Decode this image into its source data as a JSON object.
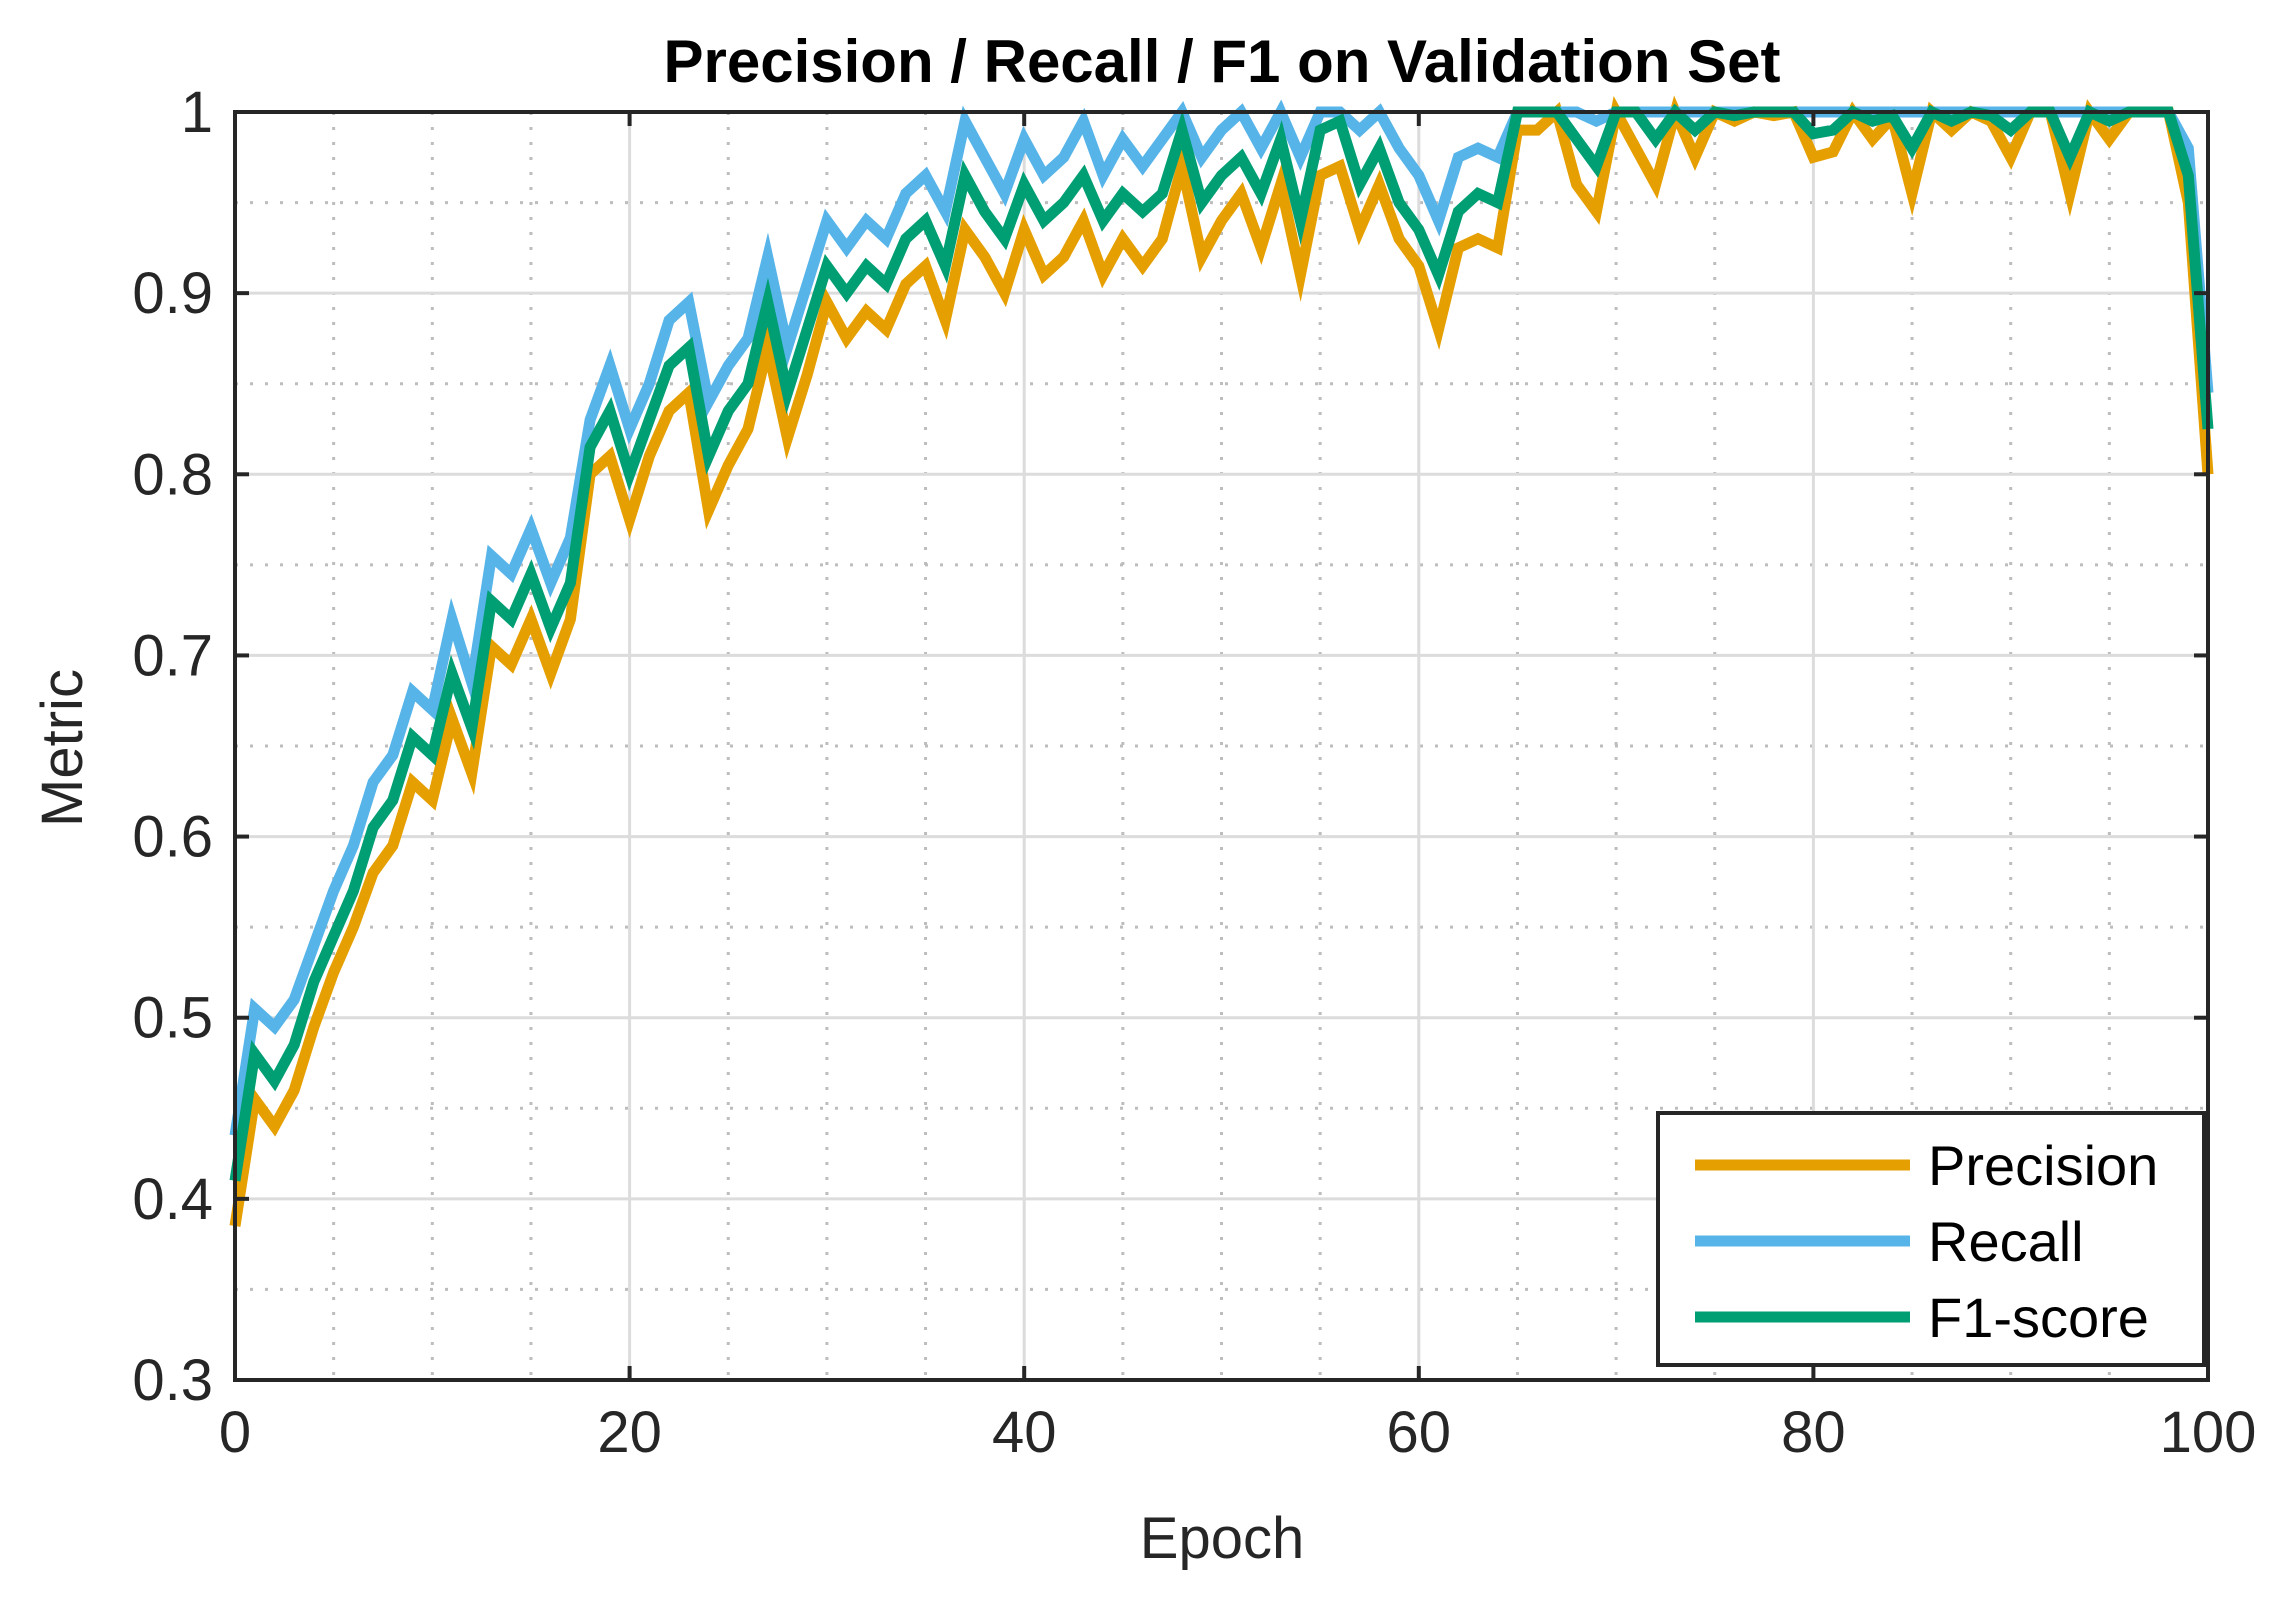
{
  "chart_data": {
    "type": "line",
    "title": "Precision / Recall / F1 on Validation Set",
    "xlabel": "Epoch",
    "ylabel": "Metric",
    "xlim": [
      0,
      100
    ],
    "ylim": [
      0.3,
      1
    ],
    "xticks": [
      0,
      20,
      40,
      60,
      80,
      100
    ],
    "xtick_labels": [
      "0",
      "20",
      "40",
      "60",
      "80",
      "100"
    ],
    "yticks": [
      0.3,
      0.4,
      0.5,
      0.6,
      0.7,
      0.8,
      0.9,
      1
    ],
    "ytick_labels": [
      "0.3",
      "0.4",
      "0.5",
      "0.6",
      "0.7",
      "0.8",
      "0.9",
      "1"
    ],
    "grid": "major and minor",
    "legend_position": "bottom-right",
    "x": [
      0,
      1,
      2,
      3,
      4,
      5,
      6,
      7,
      8,
      9,
      10,
      11,
      12,
      13,
      14,
      15,
      16,
      17,
      18,
      19,
      20,
      21,
      22,
      23,
      24,
      25,
      26,
      27,
      28,
      29,
      30,
      31,
      32,
      33,
      34,
      35,
      36,
      37,
      38,
      39,
      40,
      41,
      42,
      43,
      44,
      45,
      46,
      47,
      48,
      49,
      50,
      51,
      52,
      53,
      54,
      55,
      56,
      57,
      58,
      59,
      60,
      61,
      62,
      63,
      64,
      65,
      66,
      67,
      68,
      69,
      70,
      71,
      72,
      73,
      74,
      75,
      76,
      77,
      78,
      79,
      80,
      81,
      82,
      83,
      84,
      85,
      86,
      87,
      88,
      89,
      90,
      91,
      92,
      93,
      94,
      95,
      96,
      97,
      98,
      99,
      100
    ],
    "series": [
      {
        "name": "Precision",
        "color": "#E69F00",
        "values": [
          0.385,
          0.455,
          0.44,
          0.46,
          0.495,
          0.525,
          0.55,
          0.58,
          0.595,
          0.63,
          0.62,
          0.665,
          0.635,
          0.705,
          0.695,
          0.72,
          0.69,
          0.72,
          0.8,
          0.81,
          0.775,
          0.81,
          0.835,
          0.845,
          0.78,
          0.805,
          0.825,
          0.87,
          0.82,
          0.855,
          0.895,
          0.875,
          0.89,
          0.88,
          0.905,
          0.915,
          0.885,
          0.935,
          0.92,
          0.9,
          0.935,
          0.91,
          0.92,
          0.94,
          0.91,
          0.93,
          0.915,
          0.93,
          0.97,
          0.92,
          0.94,
          0.955,
          0.925,
          0.96,
          0.91,
          0.965,
          0.97,
          0.935,
          0.96,
          0.93,
          0.915,
          0.88,
          0.925,
          0.93,
          0.925,
          0.99,
          0.99,
          1.0,
          0.96,
          0.945,
          1.0,
          0.98,
          0.96,
          1.0,
          0.975,
          1.0,
          0.995,
          1.0,
          0.998,
          1.0,
          0.975,
          0.978,
          1.0,
          0.985,
          0.997,
          0.955,
          1.0,
          0.99,
          1.0,
          0.995,
          0.975,
          1.0,
          1.0,
          0.955,
          1.0,
          0.985,
          1.0,
          1.0,
          1.0,
          0.95,
          0.8
        ]
      },
      {
        "name": "Recall",
        "color": "#56B4E9",
        "values": [
          0.435,
          0.505,
          0.495,
          0.51,
          0.54,
          0.57,
          0.595,
          0.63,
          0.645,
          0.68,
          0.67,
          0.72,
          0.685,
          0.755,
          0.745,
          0.77,
          0.74,
          0.765,
          0.83,
          0.86,
          0.825,
          0.85,
          0.885,
          0.895,
          0.84,
          0.86,
          0.875,
          0.92,
          0.87,
          0.905,
          0.94,
          0.925,
          0.94,
          0.93,
          0.955,
          0.965,
          0.945,
          0.995,
          0.975,
          0.955,
          0.985,
          0.965,
          0.975,
          0.995,
          0.965,
          0.985,
          0.97,
          0.985,
          1.0,
          0.975,
          0.99,
          1.0,
          0.98,
          1.0,
          0.975,
          1.0,
          1.0,
          0.99,
          1.0,
          0.98,
          0.965,
          0.94,
          0.975,
          0.98,
          0.975,
          1.0,
          1.0,
          1.0,
          1.0,
          0.995,
          1.0,
          1.0,
          1.0,
          1.0,
          1.0,
          1.0,
          1.0,
          1.0,
          1.0,
          1.0,
          1.0,
          1.0,
          1.0,
          1.0,
          1.0,
          1.0,
          1.0,
          1.0,
          1.0,
          1.0,
          1.0,
          1.0,
          1.0,
          1.0,
          1.0,
          1.0,
          1.0,
          1.0,
          1.0,
          0.98,
          0.845
        ]
      },
      {
        "name": "F1-score",
        "color": "#009E73",
        "values": [
          0.41,
          0.48,
          0.465,
          0.485,
          0.52,
          0.545,
          0.57,
          0.605,
          0.62,
          0.655,
          0.645,
          0.69,
          0.66,
          0.73,
          0.72,
          0.745,
          0.715,
          0.74,
          0.815,
          0.835,
          0.8,
          0.83,
          0.86,
          0.87,
          0.81,
          0.835,
          0.85,
          0.895,
          0.845,
          0.88,
          0.915,
          0.9,
          0.915,
          0.905,
          0.93,
          0.94,
          0.915,
          0.965,
          0.945,
          0.93,
          0.96,
          0.94,
          0.95,
          0.965,
          0.94,
          0.955,
          0.945,
          0.955,
          0.99,
          0.95,
          0.965,
          0.975,
          0.955,
          0.985,
          0.94,
          0.99,
          0.995,
          0.96,
          0.98,
          0.95,
          0.935,
          0.91,
          0.945,
          0.955,
          0.95,
          1.0,
          1.0,
          1.0,
          0.985,
          0.97,
          1.0,
          1.0,
          0.985,
          1.0,
          0.99,
          1.0,
          0.998,
          1.0,
          1.0,
          1.0,
          0.988,
          0.99,
          1.0,
          0.995,
          0.998,
          0.98,
          1.0,
          0.995,
          1.0,
          0.998,
          0.99,
          1.0,
          1.0,
          0.975,
          1.0,
          0.995,
          1.0,
          1.0,
          1.0,
          0.965,
          0.825
        ]
      }
    ]
  }
}
